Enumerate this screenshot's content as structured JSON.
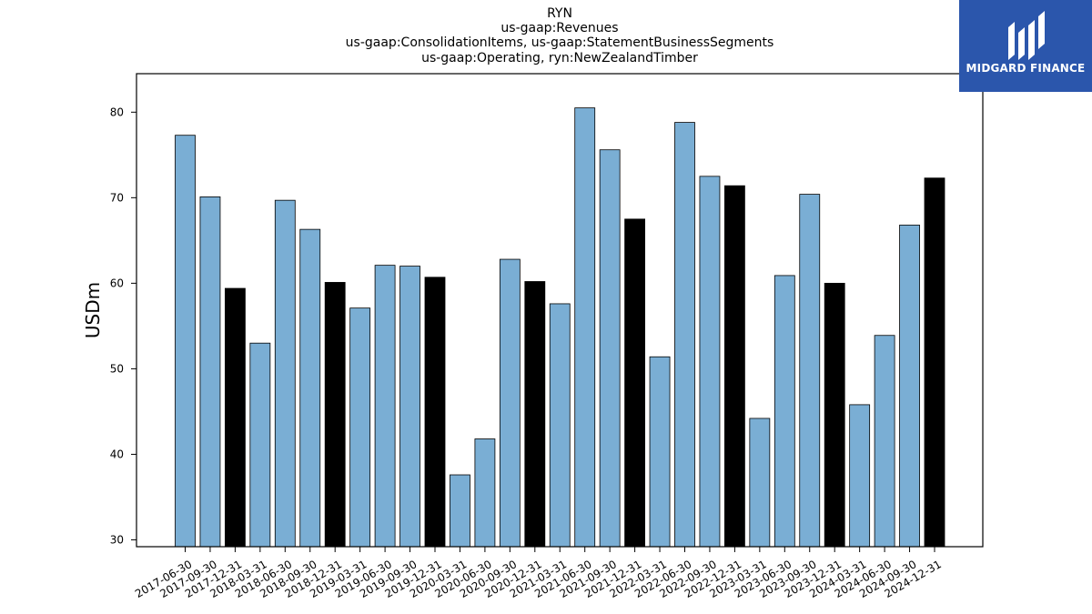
{
  "chart_data": {
    "type": "bar",
    "title_lines": [
      "RYN",
      "us-gaap:Revenues",
      "us-gaap:ConsolidationItems, us-gaap:StatementBusinessSegments",
      "us-gaap:Operating, ryn:NewZealandTimber"
    ],
    "xlabel": "",
    "ylabel": "USDm",
    "ylim": [
      29.2,
      84.5
    ],
    "yticks": [
      30,
      40,
      50,
      60,
      70,
      80
    ],
    "grid": false,
    "legend": "none",
    "colors": {
      "regular": "#7aaed4",
      "year_end": "#000000",
      "edge": "#000000"
    },
    "categories": [
      "2017-06-30",
      "2017-09-30",
      "2017-12-31",
      "2018-03-31",
      "2018-06-30",
      "2018-09-30",
      "2018-12-31",
      "2019-03-31",
      "2019-06-30",
      "2019-09-30",
      "2019-12-31",
      "2020-03-31",
      "2020-06-30",
      "2020-09-30",
      "2020-12-31",
      "2021-03-31",
      "2021-06-30",
      "2021-09-30",
      "2021-12-31",
      "2022-03-31",
      "2022-06-30",
      "2022-09-30",
      "2022-12-31",
      "2023-03-31",
      "2023-06-30",
      "2023-09-30",
      "2023-12-31",
      "2024-03-31",
      "2024-06-30",
      "2024-09-30",
      "2024-12-31"
    ],
    "values": [
      77.3,
      70.1,
      59.4,
      53.0,
      69.7,
      66.3,
      60.1,
      57.1,
      62.1,
      62.0,
      60.7,
      37.6,
      41.8,
      62.8,
      60.2,
      57.6,
      80.5,
      75.6,
      67.5,
      51.4,
      78.8,
      72.5,
      71.4,
      44.2,
      60.9,
      70.4,
      60.0,
      45.8,
      53.9,
      66.8,
      72.3
    ]
  },
  "logo": {
    "text": "MIDGARD FINANCE",
    "icon": "midgard-logo-icon"
  }
}
